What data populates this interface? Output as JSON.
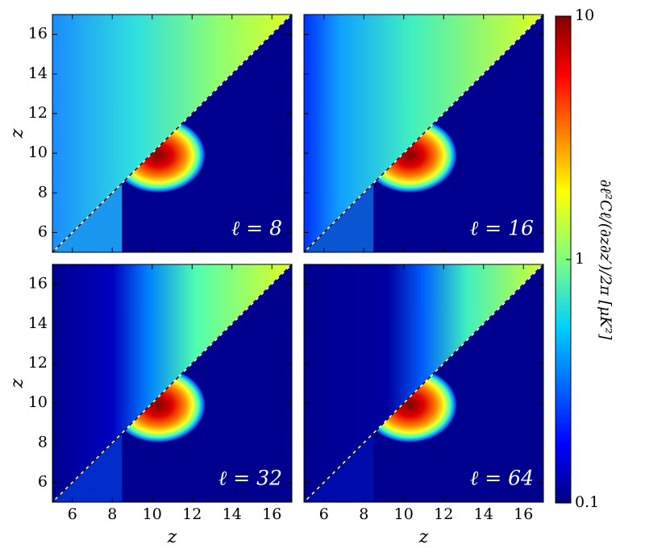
{
  "chart_data": {
    "type": "heatmap",
    "panels": [
      {
        "annotation": "ℓ = 8"
      },
      {
        "annotation": "ℓ = 16"
      },
      {
        "annotation": "ℓ = 32"
      },
      {
        "annotation": "ℓ = 64"
      }
    ],
    "xlabel": "z",
    "ylabel": "z",
    "xlim": [
      5,
      17
    ],
    "xticks": [
      6,
      8,
      10,
      12,
      14,
      16
    ],
    "ylim": [
      5,
      17
    ],
    "yticks": [
      6,
      8,
      10,
      12,
      14,
      16
    ],
    "colorbar": {
      "label": "∂ℓ²Cℓ/(∂z∂z′)/2π [μK²]",
      "scale": "log",
      "lim": [
        0.1,
        10
      ],
      "ticks": [
        0.1,
        1,
        10
      ]
    }
  }
}
